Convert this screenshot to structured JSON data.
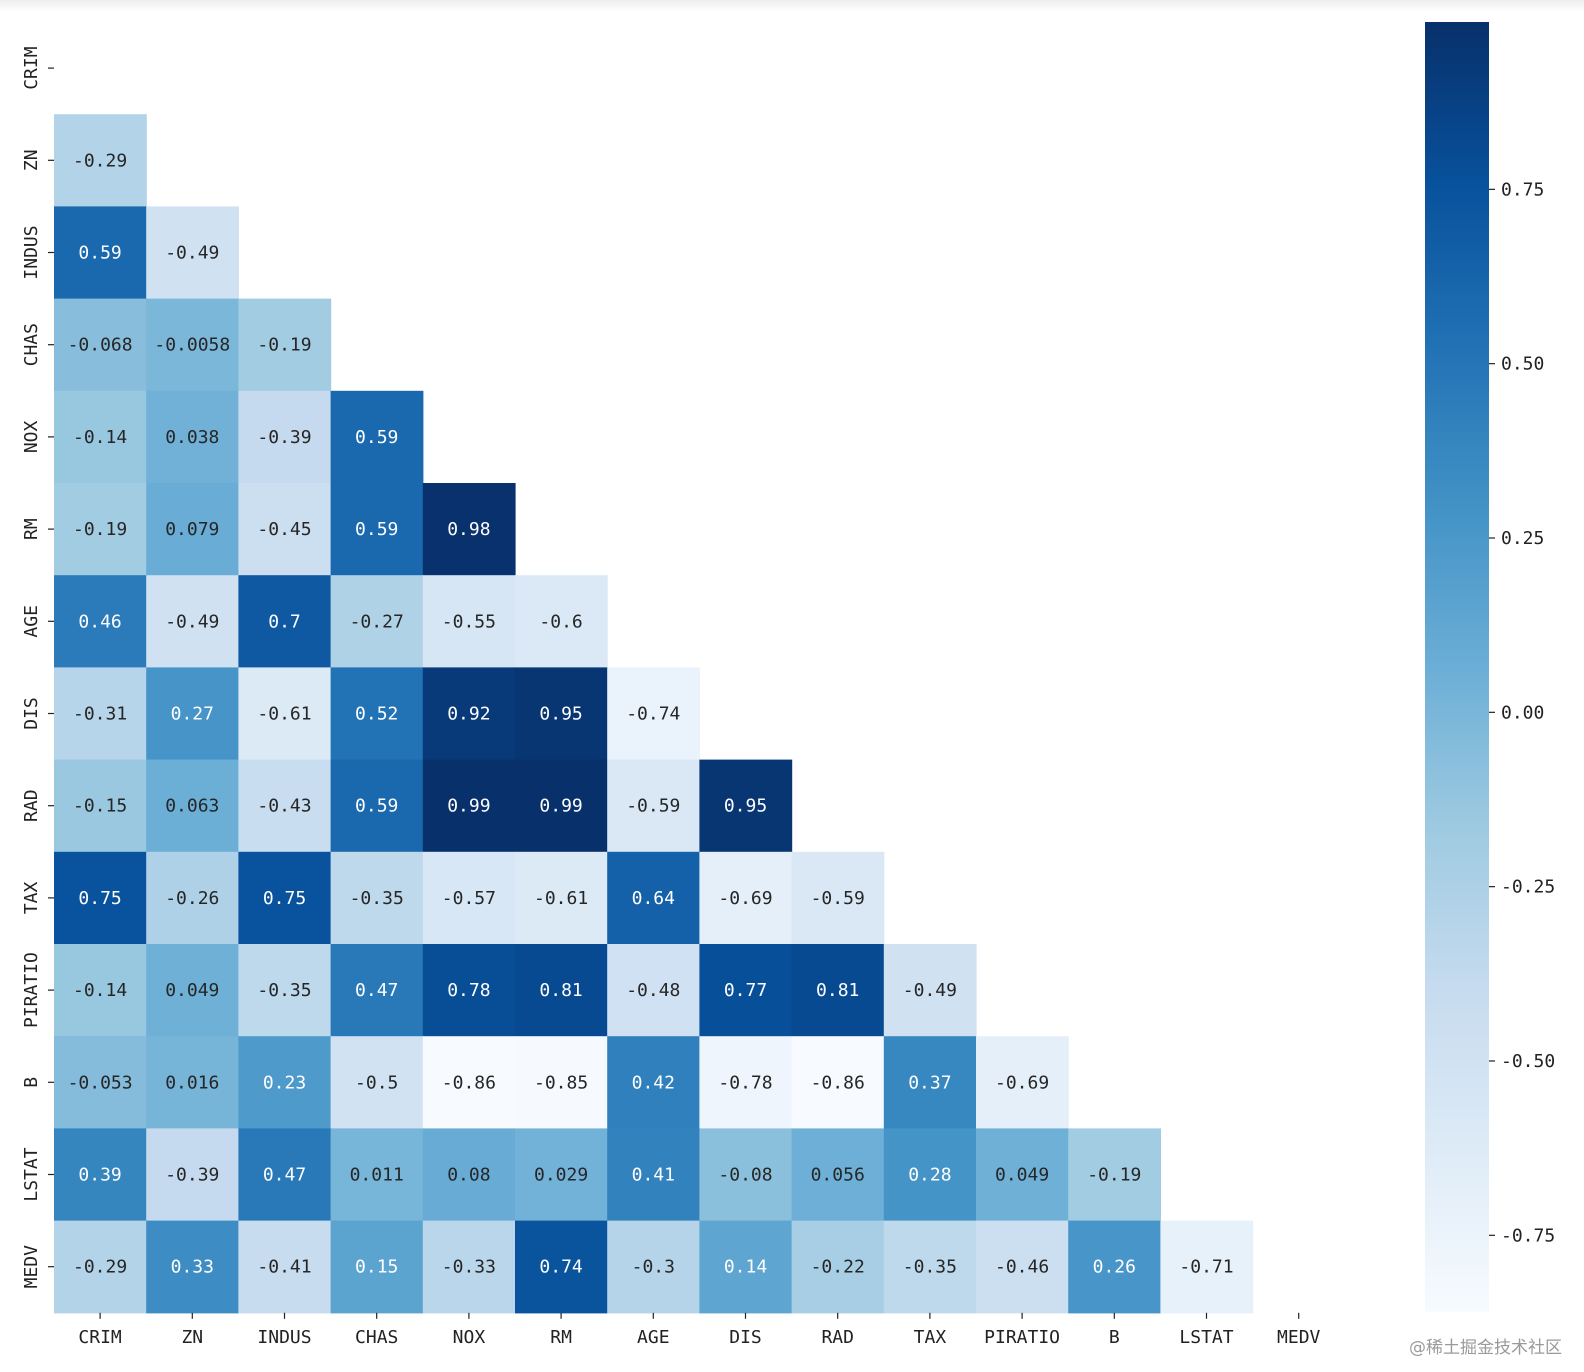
{
  "chart_data": {
    "type": "heatmap",
    "title": "",
    "mask": "lower-triangle (strict)",
    "colormap": "Blues",
    "vmin": -0.86,
    "vmax": 0.99,
    "labels": [
      "CRIM",
      "ZN",
      "INDUS",
      "CHAS",
      "NOX",
      "RM",
      "AGE",
      "DIS",
      "RAD",
      "TAX",
      "PIRATIO",
      "B",
      "LSTAT",
      "MEDV"
    ],
    "matrix": [
      [],
      [
        "-0.29"
      ],
      [
        "0.59",
        "-0.49"
      ],
      [
        "-0.068",
        "-0.0058",
        "-0.19"
      ],
      [
        "-0.14",
        "0.038",
        "-0.39",
        "0.59"
      ],
      [
        "-0.19",
        "0.079",
        "-0.45",
        "0.59",
        "0.98"
      ],
      [
        "0.46",
        "-0.49",
        "0.7",
        "-0.27",
        "-0.55",
        "-0.6"
      ],
      [
        "-0.31",
        "0.27",
        "-0.61",
        "0.52",
        "0.92",
        "0.95",
        "-0.74"
      ],
      [
        "-0.15",
        "0.063",
        "-0.43",
        "0.59",
        "0.99",
        "0.99",
        "-0.59",
        "0.95"
      ],
      [
        "0.75",
        "-0.26",
        "0.75",
        "-0.35",
        "-0.57",
        "-0.61",
        "0.64",
        "-0.69",
        "-0.59"
      ],
      [
        "-0.14",
        "0.049",
        "-0.35",
        "0.47",
        "0.78",
        "0.81",
        "-0.48",
        "0.77",
        "0.81",
        "-0.49"
      ],
      [
        "-0.053",
        "0.016",
        "0.23",
        "-0.5",
        "-0.86",
        "-0.85",
        "0.42",
        "-0.78",
        "-0.86",
        "0.37",
        "-0.69"
      ],
      [
        "0.39",
        "-0.39",
        "0.47",
        "0.011",
        "0.08",
        "0.029",
        "0.41",
        "-0.08",
        "0.056",
        "0.28",
        "0.049",
        "-0.19"
      ],
      [
        "-0.29",
        "0.33",
        "-0.41",
        "0.15",
        "-0.33",
        "0.74",
        "-0.3",
        "0.14",
        "-0.22",
        "-0.35",
        "-0.46",
        "0.26",
        "-0.71"
      ]
    ],
    "colorbar": {
      "ticks": [
        "0.75",
        "0.50",
        "0.25",
        "0.00",
        "-0.25",
        "-0.50",
        "-0.75"
      ]
    },
    "grid": false,
    "legend": "none"
  },
  "watermark": "@稀土掘金技术社区"
}
